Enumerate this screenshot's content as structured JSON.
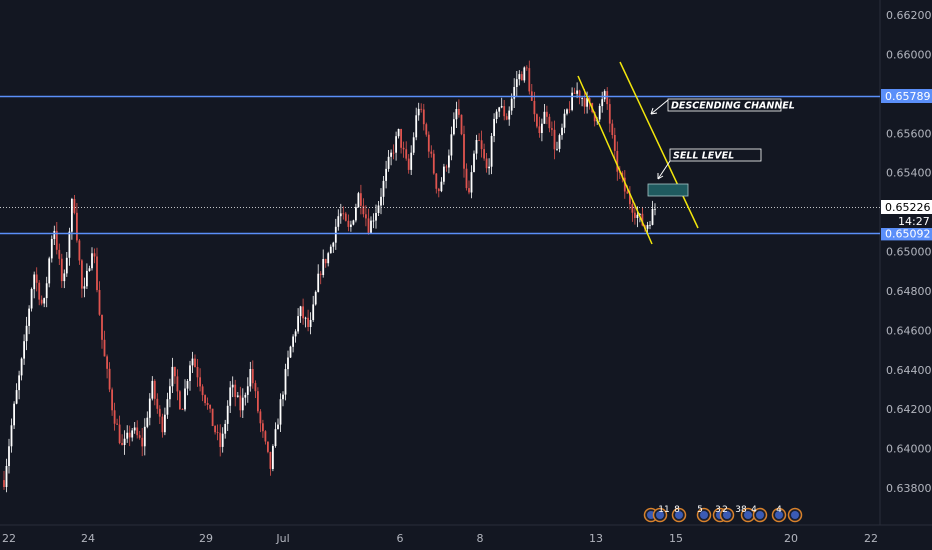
{
  "chart_data": {
    "type": "candlestick",
    "title": "",
    "xlabel": "",
    "ylabel": "",
    "ylim": [
      0.6366,
      0.6628
    ],
    "y_ticks": [
      "0.66200",
      "0.66000",
      "0.65800",
      "0.65600",
      "0.65400",
      "0.65200",
      "0.65000",
      "0.64800",
      "0.64600",
      "0.64400",
      "0.64200",
      "0.64000",
      "0.63800"
    ],
    "x_ticks": [
      "22",
      "24",
      "29",
      "Jul",
      "6",
      "8",
      "13",
      "15",
      "20",
      "22"
    ],
    "grid": false,
    "levels": [
      {
        "name": "resistance",
        "value": 0.65789,
        "label": "0.65789",
        "color": "#5b8ff9"
      },
      {
        "name": "support",
        "value": 0.65092,
        "label": "0.65092",
        "color": "#5b8ff9"
      },
      {
        "name": "last-price",
        "value": 0.65226,
        "label": "0.65226",
        "color": "#ffffff"
      }
    ],
    "countdown": "14:27",
    "annotations": [
      {
        "text": "DESCENDING CHANNEL"
      },
      {
        "text": "SELL LEVEL"
      }
    ],
    "channel_color": "#f2e60c",
    "sell_zone_color": "#1f5a5f",
    "path": [
      0.6384,
      0.642,
      0.645,
      0.649,
      0.647,
      0.6515,
      0.648,
      0.653,
      0.6475,
      0.6505,
      0.6452,
      0.642,
      0.64,
      0.641,
      0.6402,
      0.6432,
      0.641,
      0.644,
      0.642,
      0.6448,
      0.6432,
      0.6415,
      0.64,
      0.6432,
      0.642,
      0.644,
      0.6412,
      0.639,
      0.6422,
      0.645,
      0.647,
      0.646,
      0.649,
      0.65,
      0.652,
      0.651,
      0.653,
      0.6512,
      0.6525,
      0.6545,
      0.656,
      0.654,
      0.6575,
      0.6555,
      0.653,
      0.6548,
      0.6575,
      0.6525,
      0.6558,
      0.654,
      0.6575,
      0.6568,
      0.6588,
      0.6592,
      0.656,
      0.6572,
      0.655,
      0.657,
      0.6582,
      0.6576,
      0.6568,
      0.658,
      0.6545,
      0.653,
      0.652,
      0.6512,
      0.6522
    ],
    "colors": {
      "up": "#ffffff",
      "down": "#e0544f"
    },
    "event_markers": [
      {
        "label": "11"
      },
      {
        "label": "8"
      },
      {
        "label": "5"
      },
      {
        "label": "3"
      },
      {
        "label": "2"
      },
      {
        "label": "38"
      },
      {
        "label": "4"
      },
      {
        "label": "4"
      }
    ]
  }
}
